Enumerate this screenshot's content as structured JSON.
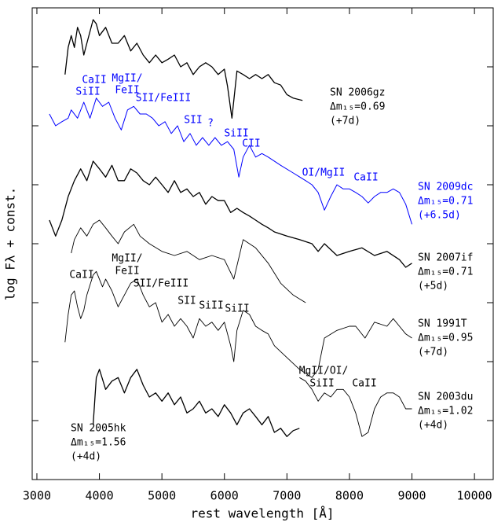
{
  "chart_data": {
    "type": "line",
    "x_label": "rest wavelength [Å]",
    "y_label": "log Fλ + const.",
    "xlim": [
      2925,
      10300
    ],
    "ylim": [
      0,
      8
    ],
    "xticks": [
      3000,
      4000,
      5000,
      6000,
      7000,
      8000,
      9000,
      10000
    ],
    "yticks": [
      0,
      1,
      2,
      3,
      4,
      5,
      6,
      7,
      8
    ],
    "ytick_labels": false,
    "series": [
      {
        "name": "SN 2006gz",
        "dm15": "Δm₁₅=0.69",
        "phase": "(+7d)",
        "color": "#000000",
        "linewidth": 1.3,
        "x": [
          3450,
          3500,
          3550,
          3600,
          3650,
          3700,
          3750,
          3800,
          3900,
          3950,
          4000,
          4100,
          4200,
          4300,
          4400,
          4500,
          4600,
          4700,
          4800,
          4900,
          5000,
          5100,
          5200,
          5300,
          5400,
          5500,
          5600,
          5700,
          5800,
          5900,
          6000,
          6050,
          6120,
          6200,
          6300,
          6400,
          6500,
          6600,
          6700,
          6800,
          6900,
          7000,
          7100,
          7250
        ],
        "values": [
          6.87,
          7.33,
          7.53,
          7.33,
          7.67,
          7.53,
          7.2,
          7.4,
          7.8,
          7.73,
          7.53,
          7.67,
          7.4,
          7.4,
          7.53,
          7.27,
          7.4,
          7.2,
          7.07,
          7.2,
          7.07,
          7.13,
          7.2,
          7.0,
          7.07,
          6.87,
          7.0,
          7.07,
          7.0,
          6.87,
          6.96,
          6.67,
          6.13,
          6.93,
          6.87,
          6.8,
          6.87,
          6.8,
          6.87,
          6.73,
          6.69,
          6.53,
          6.47,
          6.43
        ]
      },
      {
        "name": "SN 2009dc",
        "dm15": "Δm₁₅=0.71",
        "phase": "(+6.5d)",
        "color": "#0000ff",
        "linewidth": 1,
        "x": [
          3200,
          3300,
          3400,
          3500,
          3550,
          3650,
          3750,
          3850,
          3950,
          4050,
          4150,
          4250,
          4350,
          4450,
          4550,
          4650,
          4750,
          4850,
          4950,
          5050,
          5150,
          5250,
          5350,
          5450,
          5550,
          5650,
          5750,
          5850,
          5950,
          6050,
          6150,
          6230,
          6300,
          6400,
          6500,
          6600,
          6700,
          6900,
          7100,
          7300,
          7400,
          7500,
          7600,
          7700,
          7800,
          7900,
          8000,
          8100,
          8200,
          8300,
          8400,
          8500,
          8600,
          8700,
          8800,
          8900,
          9000
        ],
        "values": [
          6.2,
          6.0,
          6.07,
          6.13,
          6.27,
          6.13,
          6.4,
          6.13,
          6.47,
          6.33,
          6.4,
          6.13,
          5.93,
          6.27,
          6.33,
          6.2,
          6.2,
          6.13,
          6.0,
          6.07,
          5.87,
          6.0,
          5.73,
          5.87,
          5.67,
          5.8,
          5.67,
          5.8,
          5.67,
          5.73,
          5.6,
          5.13,
          5.47,
          5.67,
          5.47,
          5.53,
          5.47,
          5.33,
          5.2,
          5.07,
          5.0,
          4.87,
          4.57,
          4.8,
          5.0,
          4.93,
          4.93,
          4.87,
          4.8,
          4.69,
          4.8,
          4.87,
          4.87,
          4.93,
          4.87,
          4.67,
          4.33
        ]
      },
      {
        "name": "SN 2007if",
        "dm15": "Δm₁₅=0.71",
        "phase": "(+5d)",
        "color": "#000000",
        "linewidth": 1.3,
        "x": [
          3200,
          3300,
          3400,
          3500,
          3600,
          3700,
          3800,
          3900,
          4000,
          4100,
          4200,
          4300,
          4400,
          4500,
          4600,
          4700,
          4800,
          4900,
          5000,
          5100,
          5200,
          5300,
          5400,
          5500,
          5600,
          5700,
          5800,
          5900,
          6000,
          6100,
          6200,
          6300,
          6400,
          6500,
          6600,
          6700,
          6800,
          7000,
          7200,
          7400,
          7500,
          7600,
          7800,
          8000,
          8200,
          8400,
          8600,
          8800,
          8900,
          9000
        ],
        "values": [
          4.4,
          4.13,
          4.4,
          4.8,
          5.07,
          5.27,
          5.07,
          5.4,
          5.27,
          5.13,
          5.33,
          5.07,
          5.07,
          5.27,
          5.2,
          5.07,
          5.0,
          5.13,
          5.0,
          4.87,
          5.07,
          4.87,
          4.93,
          4.8,
          4.87,
          4.67,
          4.8,
          4.73,
          4.73,
          4.53,
          4.6,
          4.53,
          4.47,
          4.4,
          4.33,
          4.27,
          4.2,
          4.13,
          4.07,
          4.0,
          3.87,
          4.0,
          3.8,
          3.87,
          3.93,
          3.8,
          3.87,
          3.73,
          3.6,
          3.67
        ]
      },
      {
        "color": "#000000",
        "linewidth": 0.9,
        "x": [
          3550,
          3600,
          3700,
          3800,
          3900,
          4000,
          4100,
          4200,
          4300,
          4400,
          4550,
          4650,
          4800,
          5000,
          5200,
          5400,
          5600,
          5800,
          6000,
          6150,
          6300,
          6500,
          6700,
          6900,
          7100,
          7300
        ],
        "values": [
          3.84,
          4.07,
          4.27,
          4.13,
          4.33,
          4.4,
          4.27,
          4.13,
          4.0,
          4.2,
          4.33,
          4.13,
          4.0,
          3.87,
          3.8,
          3.87,
          3.73,
          3.8,
          3.73,
          3.4,
          4.07,
          3.93,
          3.67,
          3.33,
          3.13,
          3.0
        ]
      },
      {
        "name": "SN 1991T",
        "dm15": "Δm₁₅=0.95",
        "phase": "(+7d)",
        "color": "#000000",
        "linewidth": 0.9,
        "x": [
          3450,
          3500,
          3550,
          3600,
          3650,
          3700,
          3750,
          3800,
          3900,
          3950,
          4050,
          4100,
          4200,
          4300,
          4400,
          4500,
          4600,
          4700,
          4800,
          4900,
          5000,
          5100,
          5200,
          5300,
          5400,
          5500,
          5600,
          5700,
          5800,
          5900,
          6000,
          6100,
          6150,
          6200,
          6300,
          6400,
          6500,
          6600,
          6700,
          6800,
          7000,
          7200,
          7400,
          7500,
          7600,
          7800,
          8000,
          8100,
          8250,
          8400,
          8600,
          8700,
          8800,
          8900,
          9000
        ],
        "values": [
          2.33,
          2.8,
          3.13,
          3.2,
          2.93,
          2.73,
          2.87,
          3.13,
          3.47,
          3.53,
          3.27,
          3.4,
          3.2,
          2.93,
          3.13,
          3.33,
          3.4,
          3.13,
          2.93,
          3.0,
          2.67,
          2.8,
          2.6,
          2.73,
          2.6,
          2.4,
          2.73,
          2.6,
          2.67,
          2.53,
          2.67,
          2.27,
          2.0,
          2.53,
          2.87,
          2.8,
          2.6,
          2.53,
          2.47,
          2.27,
          2.07,
          1.87,
          1.73,
          1.87,
          2.4,
          2.53,
          2.6,
          2.6,
          2.4,
          2.67,
          2.6,
          2.73,
          2.6,
          2.47,
          2.4
        ]
      },
      {
        "name": "SN 2003du",
        "dm15": "Δm₁₅=1.02",
        "phase": "(+4d)",
        "color": "#000000",
        "linewidth": 0.9,
        "x": [
          7200,
          7300,
          7400,
          7500,
          7600,
          7700,
          7800,
          7900,
          8000,
          8100,
          8200,
          8300,
          8400,
          8500,
          8600,
          8700,
          8800,
          8900,
          9000
        ],
        "values": [
          1.73,
          1.67,
          1.53,
          1.33,
          1.47,
          1.4,
          1.53,
          1.53,
          1.4,
          1.13,
          0.73,
          0.8,
          1.2,
          1.4,
          1.47,
          1.47,
          1.4,
          1.2,
          1.2
        ]
      },
      {
        "name": "SN 2005hk",
        "dm15": "Δm₁₅=1.56",
        "phase": "(+4d)",
        "color": "#000000",
        "linewidth": 1.3,
        "x": [
          3900,
          3950,
          4000,
          4100,
          4200,
          4300,
          4400,
          4500,
          4600,
          4700,
          4800,
          4900,
          5000,
          5100,
          5200,
          5300,
          5400,
          5500,
          5600,
          5700,
          5800,
          5900,
          6000,
          6100,
          6200,
          6300,
          6400,
          6500,
          6600,
          6700,
          6800,
          6900,
          7000,
          7100,
          7200
        ],
        "values": [
          0.93,
          1.73,
          1.87,
          1.53,
          1.67,
          1.73,
          1.47,
          1.73,
          1.87,
          1.6,
          1.4,
          1.47,
          1.33,
          1.47,
          1.27,
          1.4,
          1.13,
          1.2,
          1.33,
          1.13,
          1.2,
          1.07,
          1.27,
          1.13,
          0.93,
          1.13,
          1.2,
          1.07,
          0.93,
          1.07,
          0.8,
          0.87,
          0.73,
          0.83,
          0.87
        ]
      }
    ],
    "annotations": [
      {
        "text": "CaII",
        "color": "#0000ff"
      },
      {
        "text": "SiII",
        "color": "#0000ff"
      },
      {
        "text": "MgII/",
        "color": "#0000ff"
      },
      {
        "text": "FeII",
        "color": "#0000ff"
      },
      {
        "text": "SII/FeIII",
        "color": "#0000ff"
      },
      {
        "text": "SII",
        "color": "#0000ff"
      },
      {
        "text": "?",
        "color": "#0000ff"
      },
      {
        "text": "SiII",
        "color": "#0000ff"
      },
      {
        "text": "CII",
        "color": "#0000ff"
      },
      {
        "text": "OI/MgII",
        "color": "#0000ff"
      },
      {
        "text": "CaII",
        "color": "#0000ff"
      },
      {
        "text": "MgII/",
        "color": "#000000"
      },
      {
        "text": "FeII",
        "color": "#000000"
      },
      {
        "text": "CaII",
        "color": "#000000"
      },
      {
        "text": "SII/FeIII",
        "color": "#000000"
      },
      {
        "text": "SII",
        "color": "#000000"
      },
      {
        "text": "SiII",
        "color": "#000000"
      },
      {
        "text": "SiII",
        "color": "#000000"
      },
      {
        "text": "MgII/OI/",
        "color": "#000000"
      },
      {
        "text": "SiII",
        "color": "#000000"
      },
      {
        "text": "CaII",
        "color": "#000000"
      }
    ]
  }
}
